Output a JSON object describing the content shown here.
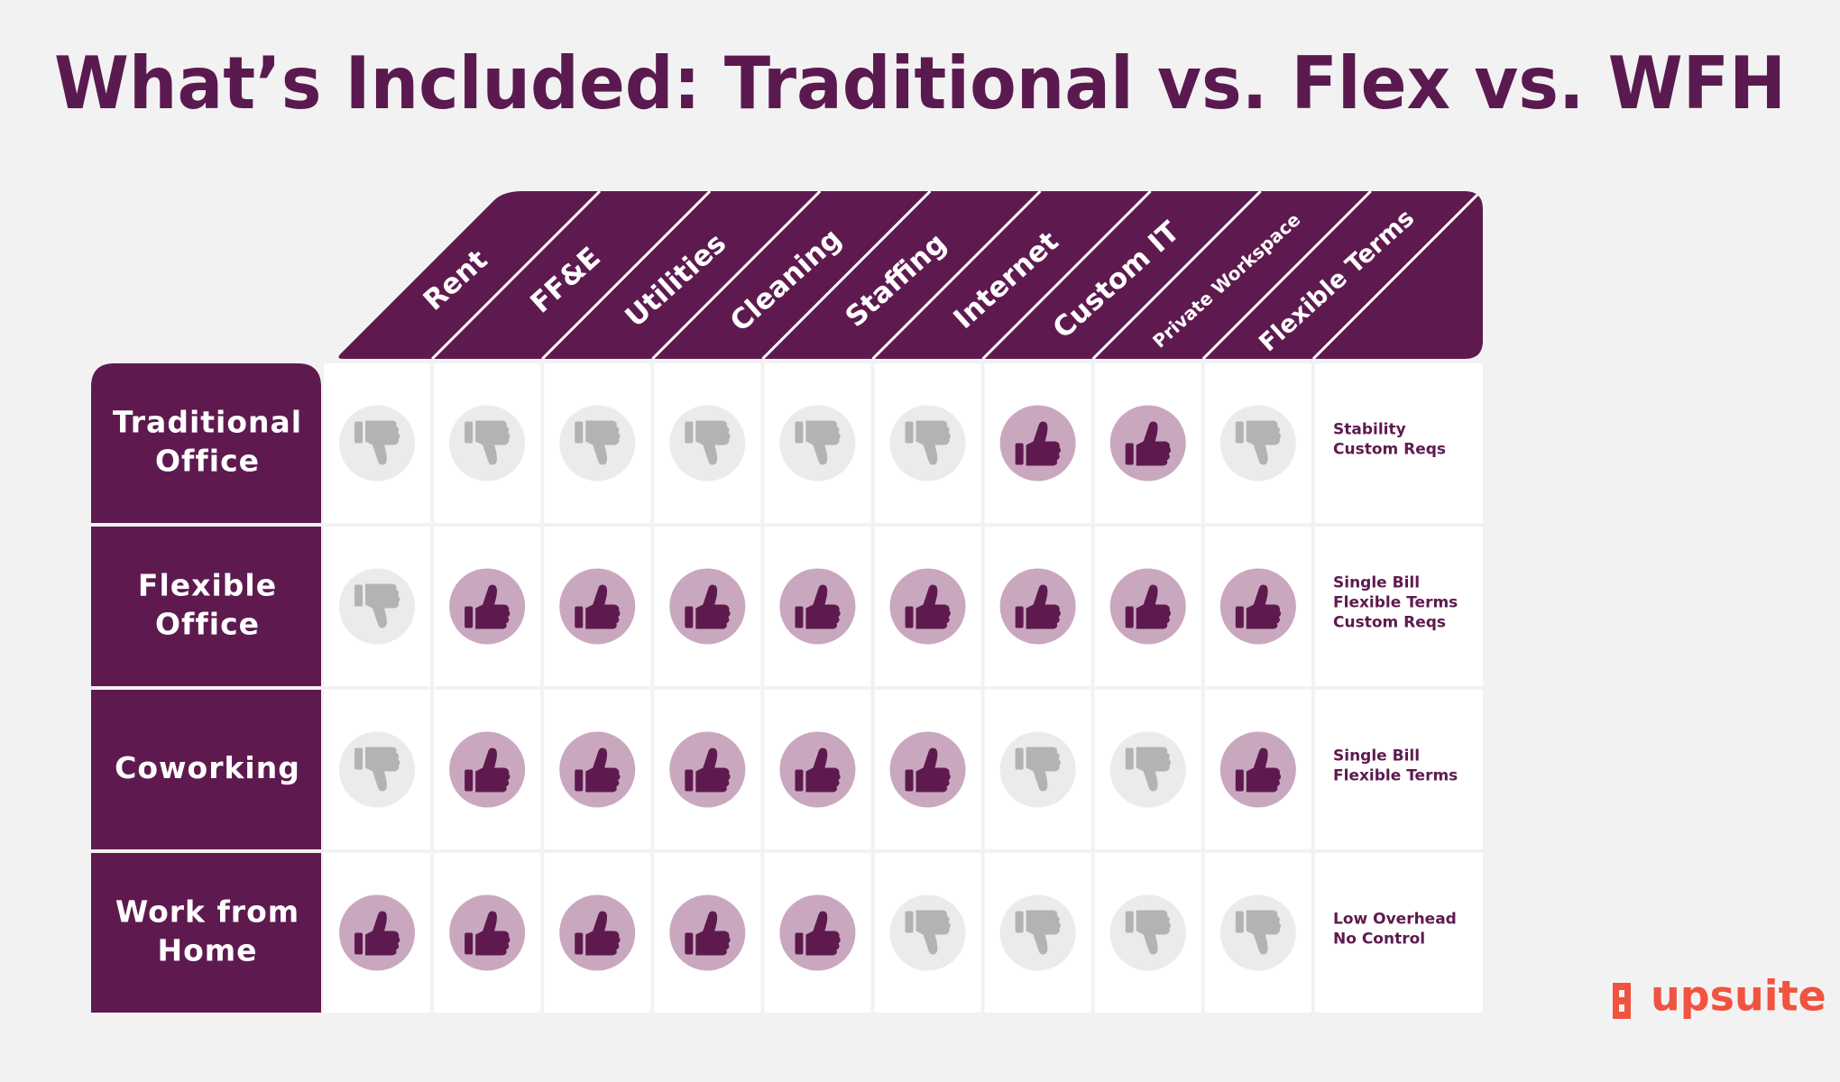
{
  "title": "What’s Included: Traditional vs. Flex vs. WFH",
  "columns": [
    "Rent",
    "FF&E",
    "Utilities",
    "Cleaning",
    "Staffing",
    "Internet",
    "Custom IT",
    "Private Workspace",
    "Flexible Terms"
  ],
  "rows": [
    {
      "label": [
        "Traditional",
        "Office"
      ],
      "included": [
        false,
        false,
        false,
        false,
        false,
        false,
        true,
        true,
        false
      ],
      "notes": [
        "Stability",
        "Custom Reqs"
      ]
    },
    {
      "label": [
        "Flexible",
        "Office"
      ],
      "included": [
        false,
        true,
        true,
        true,
        true,
        true,
        true,
        true,
        true
      ],
      "notes": [
        "Single Bill",
        "Flexible Terms",
        "Custom Reqs"
      ]
    },
    {
      "label": [
        "Coworking"
      ],
      "included": [
        false,
        true,
        true,
        true,
        true,
        true,
        false,
        false,
        true
      ],
      "notes": [
        "Single Bill",
        "Flexible Terms"
      ]
    },
    {
      "label": [
        "Work from",
        "Home"
      ],
      "included": [
        true,
        true,
        true,
        true,
        true,
        false,
        false,
        false,
        false
      ],
      "notes": [
        "Low Overhead",
        "No Control"
      ]
    }
  ],
  "logo": "upsuite"
}
